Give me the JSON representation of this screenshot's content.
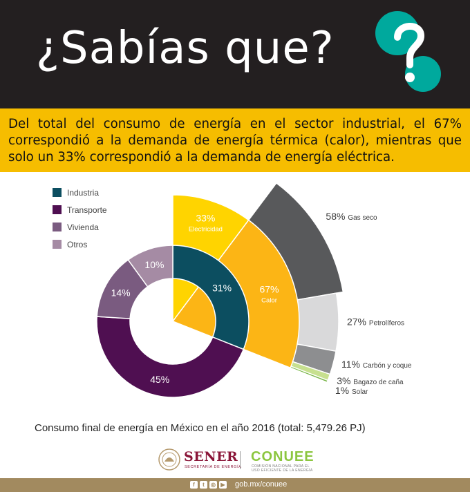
{
  "header": {
    "title": "¿Sabías que?",
    "icon": "question-mark-icon",
    "bg_color": "#231f20",
    "accent_color": "#00a99d"
  },
  "band": {
    "text": "Del total del consumo de energía en el sector industrial, el 67% correspondió a la demanda de energía térmica (calor), mientras que solo un 33% correspondió a la demanda de energía eléctrica.",
    "bg_color": "#f6bd00"
  },
  "chart_data": [
    {
      "type": "donut",
      "legend_position": "top-left",
      "legend": [
        "Industria",
        "Transporte",
        "Vivienda",
        "Otros"
      ],
      "slices": [
        {
          "name": "Industria",
          "label": "31%",
          "value": 31,
          "color": "#0c4e60"
        },
        {
          "name": "Transporte",
          "label": "45%",
          "value": 45,
          "color": "#4f0f51"
        },
        {
          "name": "Vivienda",
          "label": "14%",
          "value": 14,
          "color": "#7a5b80"
        },
        {
          "name": "Otros",
          "label": "10%",
          "value": 10,
          "color": "#a58ba4"
        }
      ]
    },
    {
      "type": "pie",
      "parent": "Industria",
      "slices": [
        {
          "name": "Electricidad",
          "label": "33%",
          "value": 33,
          "color": "#ffd400"
        },
        {
          "name": "Calor",
          "label": "67%",
          "value": 67,
          "color": "#fcb515"
        }
      ]
    },
    {
      "type": "pie",
      "parent": "Calor",
      "slices": [
        {
          "name": "Gas seco",
          "label": "58%",
          "value": 58,
          "color": "#58595b"
        },
        {
          "name": "Petrolíferos",
          "label": "27%",
          "value": 27,
          "color": "#d9d9da"
        },
        {
          "name": "Carbón y coque",
          "label": "11%",
          "value": 11,
          "color": "#8d8e90"
        },
        {
          "name": "Bagazo de caña",
          "label": "3%",
          "value": 3,
          "color": "#c7e08f"
        },
        {
          "name": "Solar",
          "label": "1%",
          "value": 1,
          "color": "#7ab648"
        }
      ]
    }
  ],
  "caption": "Consumo final de energía en México en el año 2016 (total: 5,479.26 PJ)",
  "logos": {
    "sener": "SENER",
    "sener_sub": "SECRETARÍA DE ENERGÍA",
    "conuee": "CONUEE",
    "conuee_sub": "COMISIÓN NACIONAL PARA EL USO EFICIENTE DE LA ENERGÍA"
  },
  "footer": {
    "social_icons": [
      "facebook-icon",
      "twitter-icon",
      "instagram-icon",
      "youtube-icon"
    ],
    "url": "gob.mx/conuee",
    "bg_color": "#a28a5f"
  }
}
